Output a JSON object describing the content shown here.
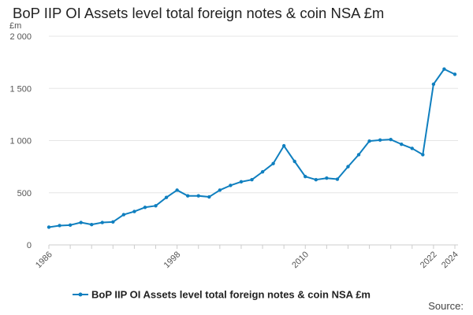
{
  "title": "BoP IIP OI Assets level total foreign notes & coin NSA £m",
  "source_label": "Source:",
  "colors": {
    "series": "#0f7fbf",
    "grid": "#e6e6e6",
    "axis": "#cccccc"
  },
  "chart_data": {
    "type": "line",
    "title": "BoP IIP OI Assets level total foreign notes & coin NSA £m",
    "ylabel": "£m",
    "xlabel": "",
    "x_tick_labels": [
      "1986",
      "1998",
      "2010",
      "2022",
      "2024"
    ],
    "y_tick_labels": [
      "0",
      "500",
      "1 000",
      "1 500",
      "2 000"
    ],
    "ylim": [
      0,
      2000
    ],
    "xlim": [
      1986,
      2024
    ],
    "grid": true,
    "legend_position": "bottom",
    "series": [
      {
        "name": "BoP IIP OI Assets level total foreign notes & coin NSA £m",
        "x": [
          1986,
          1987,
          1988,
          1989,
          1990,
          1991,
          1992,
          1993,
          1994,
          1995,
          1996,
          1997,
          1998,
          1999,
          2000,
          2001,
          2002,
          2003,
          2004,
          2005,
          2006,
          2007,
          2008,
          2009,
          2010,
          2011,
          2012,
          2013,
          2014,
          2015,
          2016,
          2017,
          2018,
          2019,
          2020,
          2021,
          2022,
          2023,
          2024
        ],
        "values": [
          170,
          185,
          190,
          215,
          195,
          215,
          220,
          290,
          320,
          360,
          375,
          455,
          525,
          470,
          470,
          460,
          525,
          570,
          605,
          625,
          700,
          780,
          950,
          800,
          655,
          625,
          640,
          630,
          750,
          865,
          995,
          1005,
          1010,
          965,
          925,
          865,
          1540,
          1685,
          1635
        ]
      }
    ]
  }
}
